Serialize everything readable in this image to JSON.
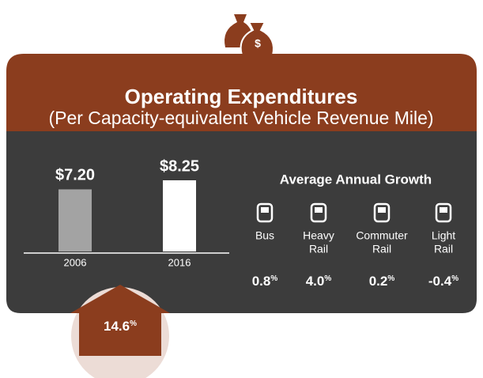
{
  "chart_data": {
    "type": "bar",
    "title": "Operating Expenditures",
    "subtitle": "(Per Capacity-equivalent Vehicle Revenue Mile)",
    "categories": [
      "2006",
      "2016"
    ],
    "values": [
      7.2,
      8.25
    ],
    "value_labels": [
      "$7.20",
      "$8.25"
    ],
    "colors": [
      "#a3a3a3",
      "#ffffff"
    ]
  },
  "growth": {
    "title": "Average Annual Growth",
    "items": [
      {
        "label": [
          "Bus"
        ],
        "value": "0.8",
        "unit": "%"
      },
      {
        "label": [
          "Heavy",
          "Rail"
        ],
        "value": "4.0",
        "unit": "%"
      },
      {
        "label": [
          "Commuter",
          "Rail"
        ],
        "value": "0.2",
        "unit": "%"
      },
      {
        "label": [
          "Light",
          "Rail"
        ],
        "value": "-0.4",
        "unit": "%"
      }
    ]
  },
  "change": {
    "value": "14.6",
    "unit": "%"
  }
}
